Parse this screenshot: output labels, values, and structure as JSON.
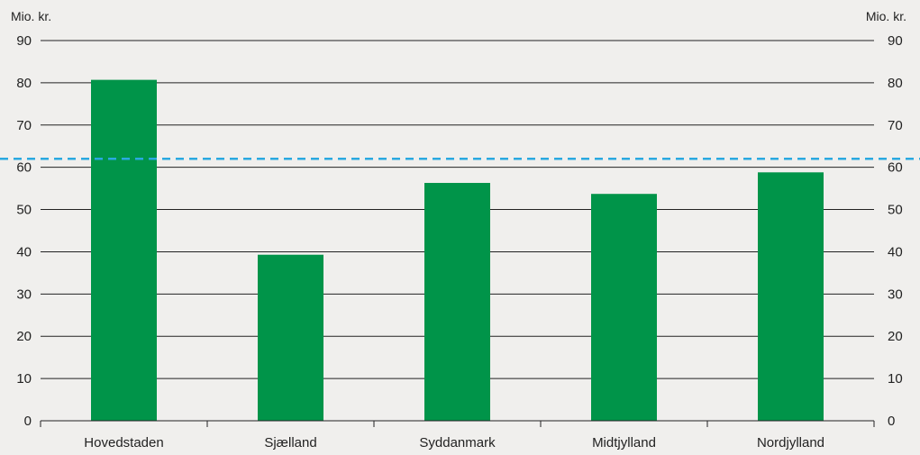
{
  "chart_data": {
    "type": "bar",
    "categories": [
      "Hovedstaden",
      "Sjælland",
      "Syddanmark",
      "Midtjylland",
      "Nordjylland"
    ],
    "values": [
      80.7,
      39.3,
      56.3,
      53.7,
      58.8
    ],
    "reference_line": {
      "value": 62,
      "style": "dashed",
      "color": "#2aa9e0"
    },
    "yunit_left": "Mio. kr.",
    "yunit_right": "Mio. kr.",
    "ylim": [
      0,
      90
    ],
    "yticks": [
      0,
      10,
      20,
      30,
      40,
      50,
      60,
      70,
      80,
      90
    ],
    "grid": true,
    "legend": "none",
    "colors": {
      "bar": "#009449",
      "grid": "#222222",
      "background": "#f0efed",
      "reference": "#2aa9e0"
    }
  }
}
